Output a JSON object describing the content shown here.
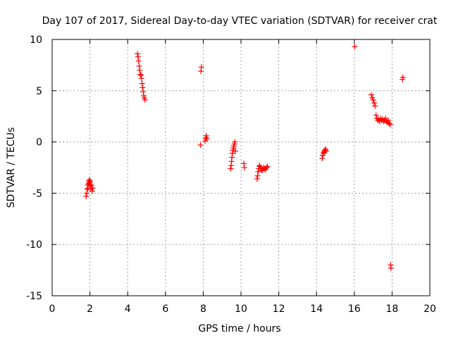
{
  "chart_data": {
    "type": "scatter",
    "title": "Day 107 of 2017, Sidereal Day-to-day VTEC variation (SDTVAR) for receiver crat",
    "xlabel": "GPS time / hours",
    "ylabel": "SDTVAR / TECUs",
    "xlim": [
      0,
      20
    ],
    "ylim": [
      -15,
      10
    ],
    "xticks": [
      0,
      2,
      4,
      6,
      8,
      10,
      12,
      14,
      16,
      18,
      20
    ],
    "yticks": [
      -15,
      -10,
      -5,
      0,
      5,
      10
    ],
    "grid": true,
    "marker": "+",
    "marker_color": "#ff0000",
    "series": [
      {
        "name": "SDTVAR",
        "x": [
          1.8,
          1.83,
          1.86,
          1.88,
          1.9,
          1.92,
          1.95,
          1.97,
          1.99,
          2.0,
          2.02,
          2.05,
          2.08,
          2.12,
          2.15,
          4.52,
          4.55,
          4.58,
          4.61,
          4.64,
          4.67,
          4.7,
          4.73,
          4.76,
          4.79,
          4.82,
          4.85,
          4.88,
          4.92,
          7.85,
          7.88,
          7.9,
          8.1,
          8.13,
          8.16,
          8.19,
          9.45,
          9.48,
          9.5,
          9.52,
          9.55,
          9.57,
          9.6,
          9.62,
          9.65,
          9.68,
          9.7,
          10.15,
          10.18,
          10.85,
          10.88,
          10.91,
          10.94,
          10.97,
          11.0,
          11.05,
          11.1,
          11.15,
          11.2,
          11.25,
          11.3,
          11.35,
          11.4,
          14.3,
          14.33,
          14.36,
          14.39,
          14.42,
          14.45,
          14.48,
          14.51,
          16.02,
          16.9,
          16.95,
          17.0,
          17.05,
          17.1,
          17.15,
          17.2,
          17.25,
          17.3,
          17.35,
          17.4,
          17.45,
          17.5,
          17.55,
          17.6,
          17.65,
          17.7,
          17.75,
          17.8,
          17.85,
          17.9,
          17.92,
          17.94,
          18.55,
          18.57
        ],
        "y": [
          -5.3,
          -5.0,
          -4.6,
          -4.2,
          -4.5,
          -4.0,
          -3.8,
          -4.1,
          -3.7,
          -4.3,
          -3.9,
          -4.6,
          -4.2,
          -4.8,
          -4.5,
          8.6,
          8.3,
          7.9,
          7.4,
          7.0,
          6.6,
          6.5,
          6.2,
          5.7,
          5.3,
          4.9,
          4.5,
          4.3,
          4.1,
          -0.3,
          6.9,
          7.3,
          0.1,
          0.4,
          0.6,
          0.3,
          -2.6,
          -2.3,
          -1.9,
          -1.5,
          -1.1,
          -0.8,
          -0.6,
          -0.4,
          -0.2,
          0.0,
          -0.9,
          -2.1,
          -2.5,
          -3.6,
          -3.3,
          -2.9,
          -2.6,
          -2.3,
          -2.4,
          -2.6,
          -2.8,
          -2.7,
          -2.5,
          -2.6,
          -2.7,
          -2.5,
          -2.4,
          -1.6,
          -1.3,
          -1.1,
          -1.0,
          -0.9,
          -0.8,
          -0.7,
          -0.9,
          9.3,
          4.6,
          4.3,
          4.1,
          3.8,
          3.5,
          2.6,
          2.3,
          2.1,
          2.2,
          2.0,
          2.3,
          2.1,
          2.2,
          2.0,
          2.1,
          2.3,
          2.0,
          1.9,
          2.1,
          1.8,
          1.7,
          -12.0,
          -12.3,
          6.1,
          6.3
        ]
      }
    ]
  }
}
